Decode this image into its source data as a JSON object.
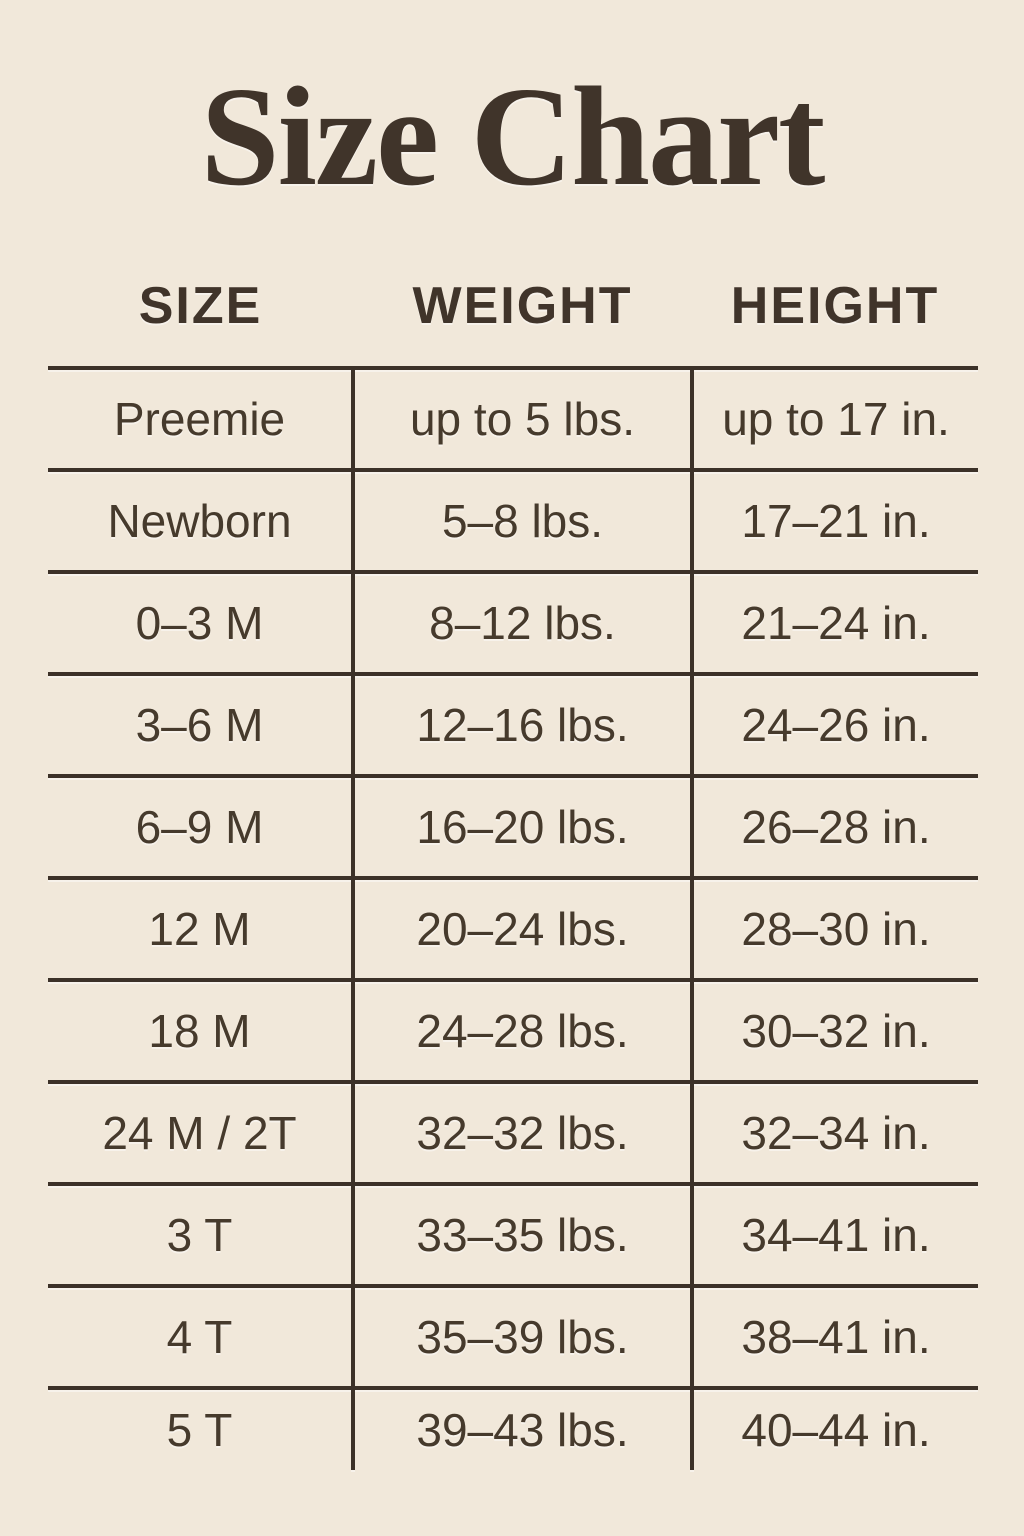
{
  "colors": {
    "background": "#f1e8da",
    "title": "#40342a",
    "ink": "#463a2c",
    "line": "#3c3128"
  },
  "chart_data": {
    "type": "table",
    "title": "Size Chart",
    "columns": [
      "SIZE",
      "WEIGHT",
      "HEIGHT"
    ],
    "rows": [
      [
        "Preemie",
        "up to 5 lbs.",
        "up to 17 in."
      ],
      [
        "Newborn",
        "5–8 lbs.",
        "17–21 in."
      ],
      [
        "0–3 M",
        "8–12 lbs.",
        "21–24 in."
      ],
      [
        "3–6 M",
        "12–16 lbs.",
        "24–26 in."
      ],
      [
        "6–9 M",
        "16–20 lbs.",
        "26–28 in."
      ],
      [
        "12 M",
        "20–24 lbs.",
        "28–30 in."
      ],
      [
        "18 M",
        "24–28 lbs.",
        "30–32 in."
      ],
      [
        "24 M / 2T",
        "32–32 lbs.",
        "32–34 in."
      ],
      [
        "3 T",
        "33–35 lbs.",
        "34–41 in."
      ],
      [
        "4 T",
        "35–39 lbs.",
        "38–41 in."
      ],
      [
        "5 T",
        "39–43 lbs.",
        "40–44 in."
      ]
    ],
    "layout": {
      "grid": "horizontal and vertical rules, no outer border, no rule under last row",
      "legend_position": "none"
    }
  }
}
